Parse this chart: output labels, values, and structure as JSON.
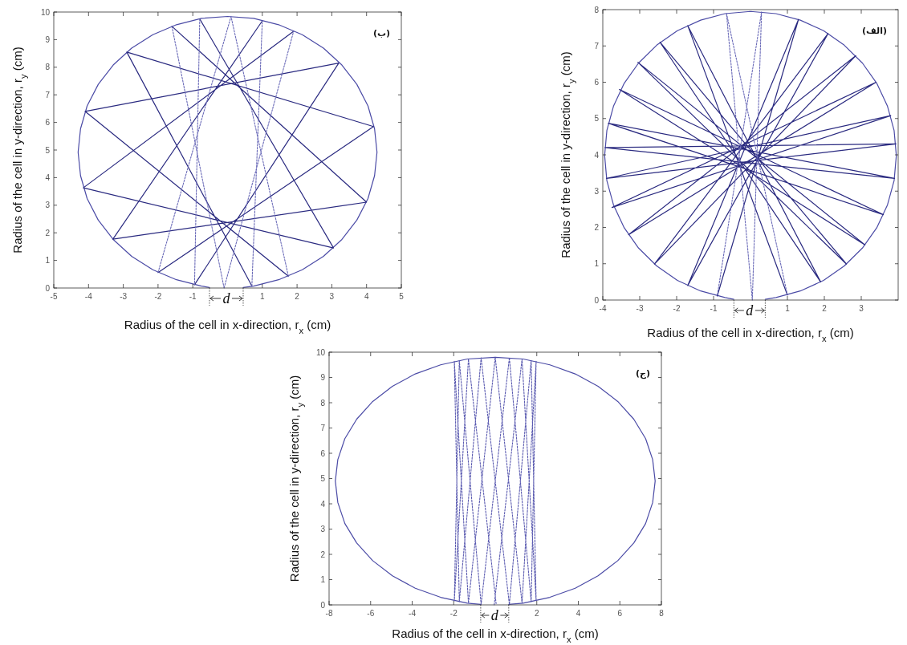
{
  "chart_data": [
    {
      "type": "line",
      "xlabel": "Radius of the cell in x-direction, r$_{x}$ (cm)",
      "ylabel": "Radius of the cell in y-direction, r$_{y}$ (cm)",
      "xlim": [
        -5,
        5
      ],
      "ylim": [
        0,
        10
      ],
      "xticks": [
        -5,
        -4,
        -3,
        -2,
        -1,
        1,
        2,
        3,
        4,
        5
      ],
      "yticks": [
        0,
        1,
        2,
        3,
        4,
        5,
        6,
        7,
        8,
        9,
        10
      ],
      "annotations": [
        "(ب)",
        "d"
      ],
      "series": [
        {
          "color": "#4b4ba6",
          "x": [
            0.45,
            0.75,
            1.47,
            2.15,
            2.76,
            3.29,
            3.72,
            4.04,
            4.23,
            4.3,
            4.23,
            4.04,
            3.72,
            3.29,
            2.76,
            2.15,
            1.47,
            0.75,
            0,
            -0.75,
            -1.47,
            -2.15,
            -2.76,
            -3.29,
            -3.72,
            -4.04,
            -4.23,
            -4.3,
            -4.23,
            -4.04,
            -3.72,
            -3.29,
            -2.76,
            -2.15,
            -1.47,
            -0.75,
            -0.52
          ],
          "values": [
            0.02,
            0.07,
            0.3,
            0.66,
            1.15,
            1.76,
            2.46,
            3.24,
            4.07,
            4.92,
            5.77,
            6.6,
            7.38,
            8.08,
            8.69,
            9.18,
            9.54,
            9.77,
            9.84,
            9.77,
            9.54,
            9.18,
            8.69,
            8.08,
            7.38,
            6.6,
            5.77,
            4.92,
            4.07,
            3.24,
            2.46,
            1.76,
            1.15,
            0.66,
            0.3,
            0.07,
            0.02
          ]
        },
        {
          "color": "#2a2a80",
          "x": [
            1.9,
            -4.15,
            3.05,
            -0.8,
            null,
            -0.95,
            3.2,
            -4.1,
            1.75,
            null,
            -2.0,
            4.2,
            -2.9,
            0.7,
            null,
            1.0,
            -3.3,
            4.0,
            -1.6
          ],
          "values": [
            9.3,
            3.63,
            1.45,
            9.75,
            null,
            0.12,
            8.15,
            6.4,
            0.43,
            null,
            0.56,
            5.85,
            8.55,
            0.07,
            null,
            9.68,
            1.77,
            3.11,
            9.48
          ]
        },
        {
          "color": "#6a6ab8",
          "line_style": "dotted",
          "x": [
            -0.1,
            1.9,
            null,
            -0.8,
            -0.95,
            null,
            1.75,
            0.1,
            -2.0,
            null,
            0.7,
            1.0,
            null,
            -1.6,
            -0.1
          ],
          "values": [
            0,
            9.3,
            null,
            9.75,
            0.12,
            null,
            0.43,
            9.84,
            0.56,
            null,
            0.07,
            9.68,
            null,
            9.48,
            0
          ]
        }
      ]
    },
    {
      "type": "line",
      "xlabel": "Radius of the cell in x-direction, r$_{x}$ (cm)",
      "ylabel": "Radius of the cell in y-direction, r$_{y}$ (cm)",
      "xlim": [
        -4,
        4
      ],
      "ylim": [
        0,
        8
      ],
      "xticks": [
        -4,
        -3,
        -2,
        -1,
        1,
        2,
        3
      ],
      "yticks": [
        0,
        1,
        2,
        3,
        4,
        5,
        6,
        7,
        8
      ],
      "annotations": [
        "(الف)",
        "d"
      ],
      "series": [
        {
          "color": "#4b4ba6",
          "x": [
            0.4,
            0.69,
            1.35,
            1.98,
            2.54,
            3.03,
            3.42,
            3.71,
            3.89,
            3.95,
            3.89,
            3.71,
            3.42,
            3.03,
            2.54,
            1.98,
            1.35,
            0.69,
            0,
            -0.69,
            -1.35,
            -1.98,
            -2.54,
            -3.03,
            -3.42,
            -3.71,
            -3.89,
            -3.95,
            -3.89,
            -3.71,
            -3.42,
            -3.03,
            -2.54,
            -1.98,
            -1.35,
            -0.69,
            -0.45
          ],
          "values": [
            0.02,
            0.07,
            0.25,
            0.54,
            0.94,
            1.43,
            1.99,
            2.62,
            3.29,
            3.98,
            4.67,
            5.34,
            5.97,
            6.53,
            7.02,
            7.42,
            7.71,
            7.89,
            7.95,
            7.89,
            7.71,
            7.42,
            7.02,
            6.53,
            5.97,
            5.34,
            4.67,
            3.98,
            3.29,
            2.62,
            1.99,
            1.43,
            0.94,
            0.54,
            0.25,
            0.07,
            0.02
          ]
        },
        {
          "color": "#2a2a80",
          "x": [
            -0.9,
            1.3,
            -1.7,
            2.1,
            -2.6,
            2.85,
            -3.3,
            3.4,
            -3.75,
            3.8,
            -3.9,
            3.94,
            -3.94,
            3.9,
            -3.85,
            3.6,
            -3.55,
            3.1,
            -3.05,
            2.6,
            -2.45,
            1.9,
            -1.7,
            1.0
          ],
          "values": [
            0.11,
            7.73,
            0.4,
            7.34,
            0.99,
            6.73,
            1.8,
            6.0,
            2.55,
            5.08,
            3.35,
            4.3,
            4.2,
            3.35,
            4.87,
            2.35,
            5.8,
            1.52,
            6.55,
            0.99,
            7.1,
            0.5,
            7.56,
            0.14
          ]
        },
        {
          "color": "#6a6ab8",
          "line_style": "dotted",
          "x": [
            0.05,
            0.3,
            -0.9,
            null,
            1.0,
            -0.65,
            0.05
          ],
          "values": [
            0,
            7.94,
            0.11,
            null,
            0.14,
            7.9,
            0
          ]
        }
      ]
    },
    {
      "type": "line",
      "xlabel": "Radius of the cell in x-direction, r$_{x}$ (cm)",
      "ylabel": "Radius of the cell in y-direction, r$_{y}$ (cm)",
      "xlim": [
        -8,
        8
      ],
      "ylim": [
        0,
        10
      ],
      "xticks": [
        -8,
        -6,
        -4,
        -2,
        2,
        4,
        6,
        8
      ],
      "yticks": [
        0,
        1,
        2,
        3,
        4,
        5,
        6,
        7,
        8,
        9,
        10
      ],
      "annotations": [
        "(ج)",
        "d"
      ],
      "series": [
        {
          "color": "#4b4ba6",
          "x": [
            0.65,
            1.34,
            2.63,
            3.85,
            4.95,
            5.9,
            6.67,
            7.24,
            7.58,
            7.7,
            7.58,
            7.24,
            6.67,
            5.9,
            4.95,
            3.85,
            2.63,
            1.34,
            0,
            -1.34,
            -2.63,
            -3.85,
            -4.95,
            -5.9,
            -6.67,
            -7.24,
            -7.58,
            -7.7,
            -7.58,
            -7.24,
            -6.67,
            -5.9,
            -4.95,
            -3.85,
            -2.63,
            -1.34,
            -0.7
          ],
          "values": [
            0.02,
            0.07,
            0.3,
            0.66,
            1.15,
            1.75,
            2.45,
            3.22,
            4.05,
            4.9,
            5.75,
            6.58,
            7.35,
            8.05,
            8.65,
            9.14,
            9.5,
            9.73,
            9.8,
            9.73,
            9.5,
            9.14,
            8.65,
            8.05,
            7.35,
            6.58,
            5.75,
            4.9,
            4.05,
            3.22,
            2.45,
            1.75,
            1.15,
            0.66,
            0.3,
            0.07,
            0.02
          ]
        },
        {
          "color": "#5a5ab0",
          "line_style": "dotted",
          "x": [
            -0.05,
            1.29,
            1.97,
            1.73,
            0.68,
            -0.68,
            -1.73,
            -1.97,
            -1.29,
            0,
            1.29,
            1.97,
            1.73,
            0.68,
            -0.68,
            -1.73,
            -1.97,
            -1.29,
            0.05
          ],
          "values": [
            0,
            9.73,
            0.16,
            9.67,
            0.02,
            9.78,
            0.13,
            9.64,
            0.07,
            9.8,
            0.07,
            9.64,
            0.13,
            9.78,
            0.02,
            9.67,
            0.16,
            9.73,
            0
          ]
        }
      ]
    }
  ]
}
